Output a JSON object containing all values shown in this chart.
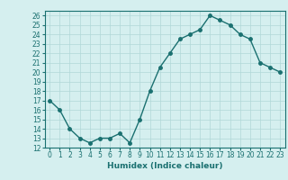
{
  "x": [
    0,
    1,
    2,
    3,
    4,
    5,
    6,
    7,
    8,
    9,
    10,
    11,
    12,
    13,
    14,
    15,
    16,
    17,
    18,
    19,
    20,
    21,
    22,
    23
  ],
  "y": [
    17,
    16,
    14,
    13,
    12.5,
    13,
    13,
    13.5,
    12.5,
    15,
    18,
    20.5,
    22,
    23.5,
    24,
    24.5,
    26,
    25.5,
    25,
    24,
    23.5,
    21,
    20.5,
    20
  ],
  "line_color": "#1a7070",
  "marker": "o",
  "marker_size": 2.5,
  "bg_color": "#d5efef",
  "grid_color": "#b0d8d8",
  "xlabel": "Humidex (Indice chaleur)",
  "ylabel": "",
  "xlim": [
    -0.5,
    23.5
  ],
  "ylim": [
    12,
    26.5
  ],
  "yticks": [
    12,
    13,
    14,
    15,
    16,
    17,
    18,
    19,
    20,
    21,
    22,
    23,
    24,
    25,
    26
  ],
  "xticks": [
    0,
    1,
    2,
    3,
    4,
    5,
    6,
    7,
    8,
    9,
    10,
    11,
    12,
    13,
    14,
    15,
    16,
    17,
    18,
    19,
    20,
    21,
    22,
    23
  ],
  "tick_fontsize": 5.5,
  "xlabel_fontsize": 6.5,
  "line_width": 1.0
}
